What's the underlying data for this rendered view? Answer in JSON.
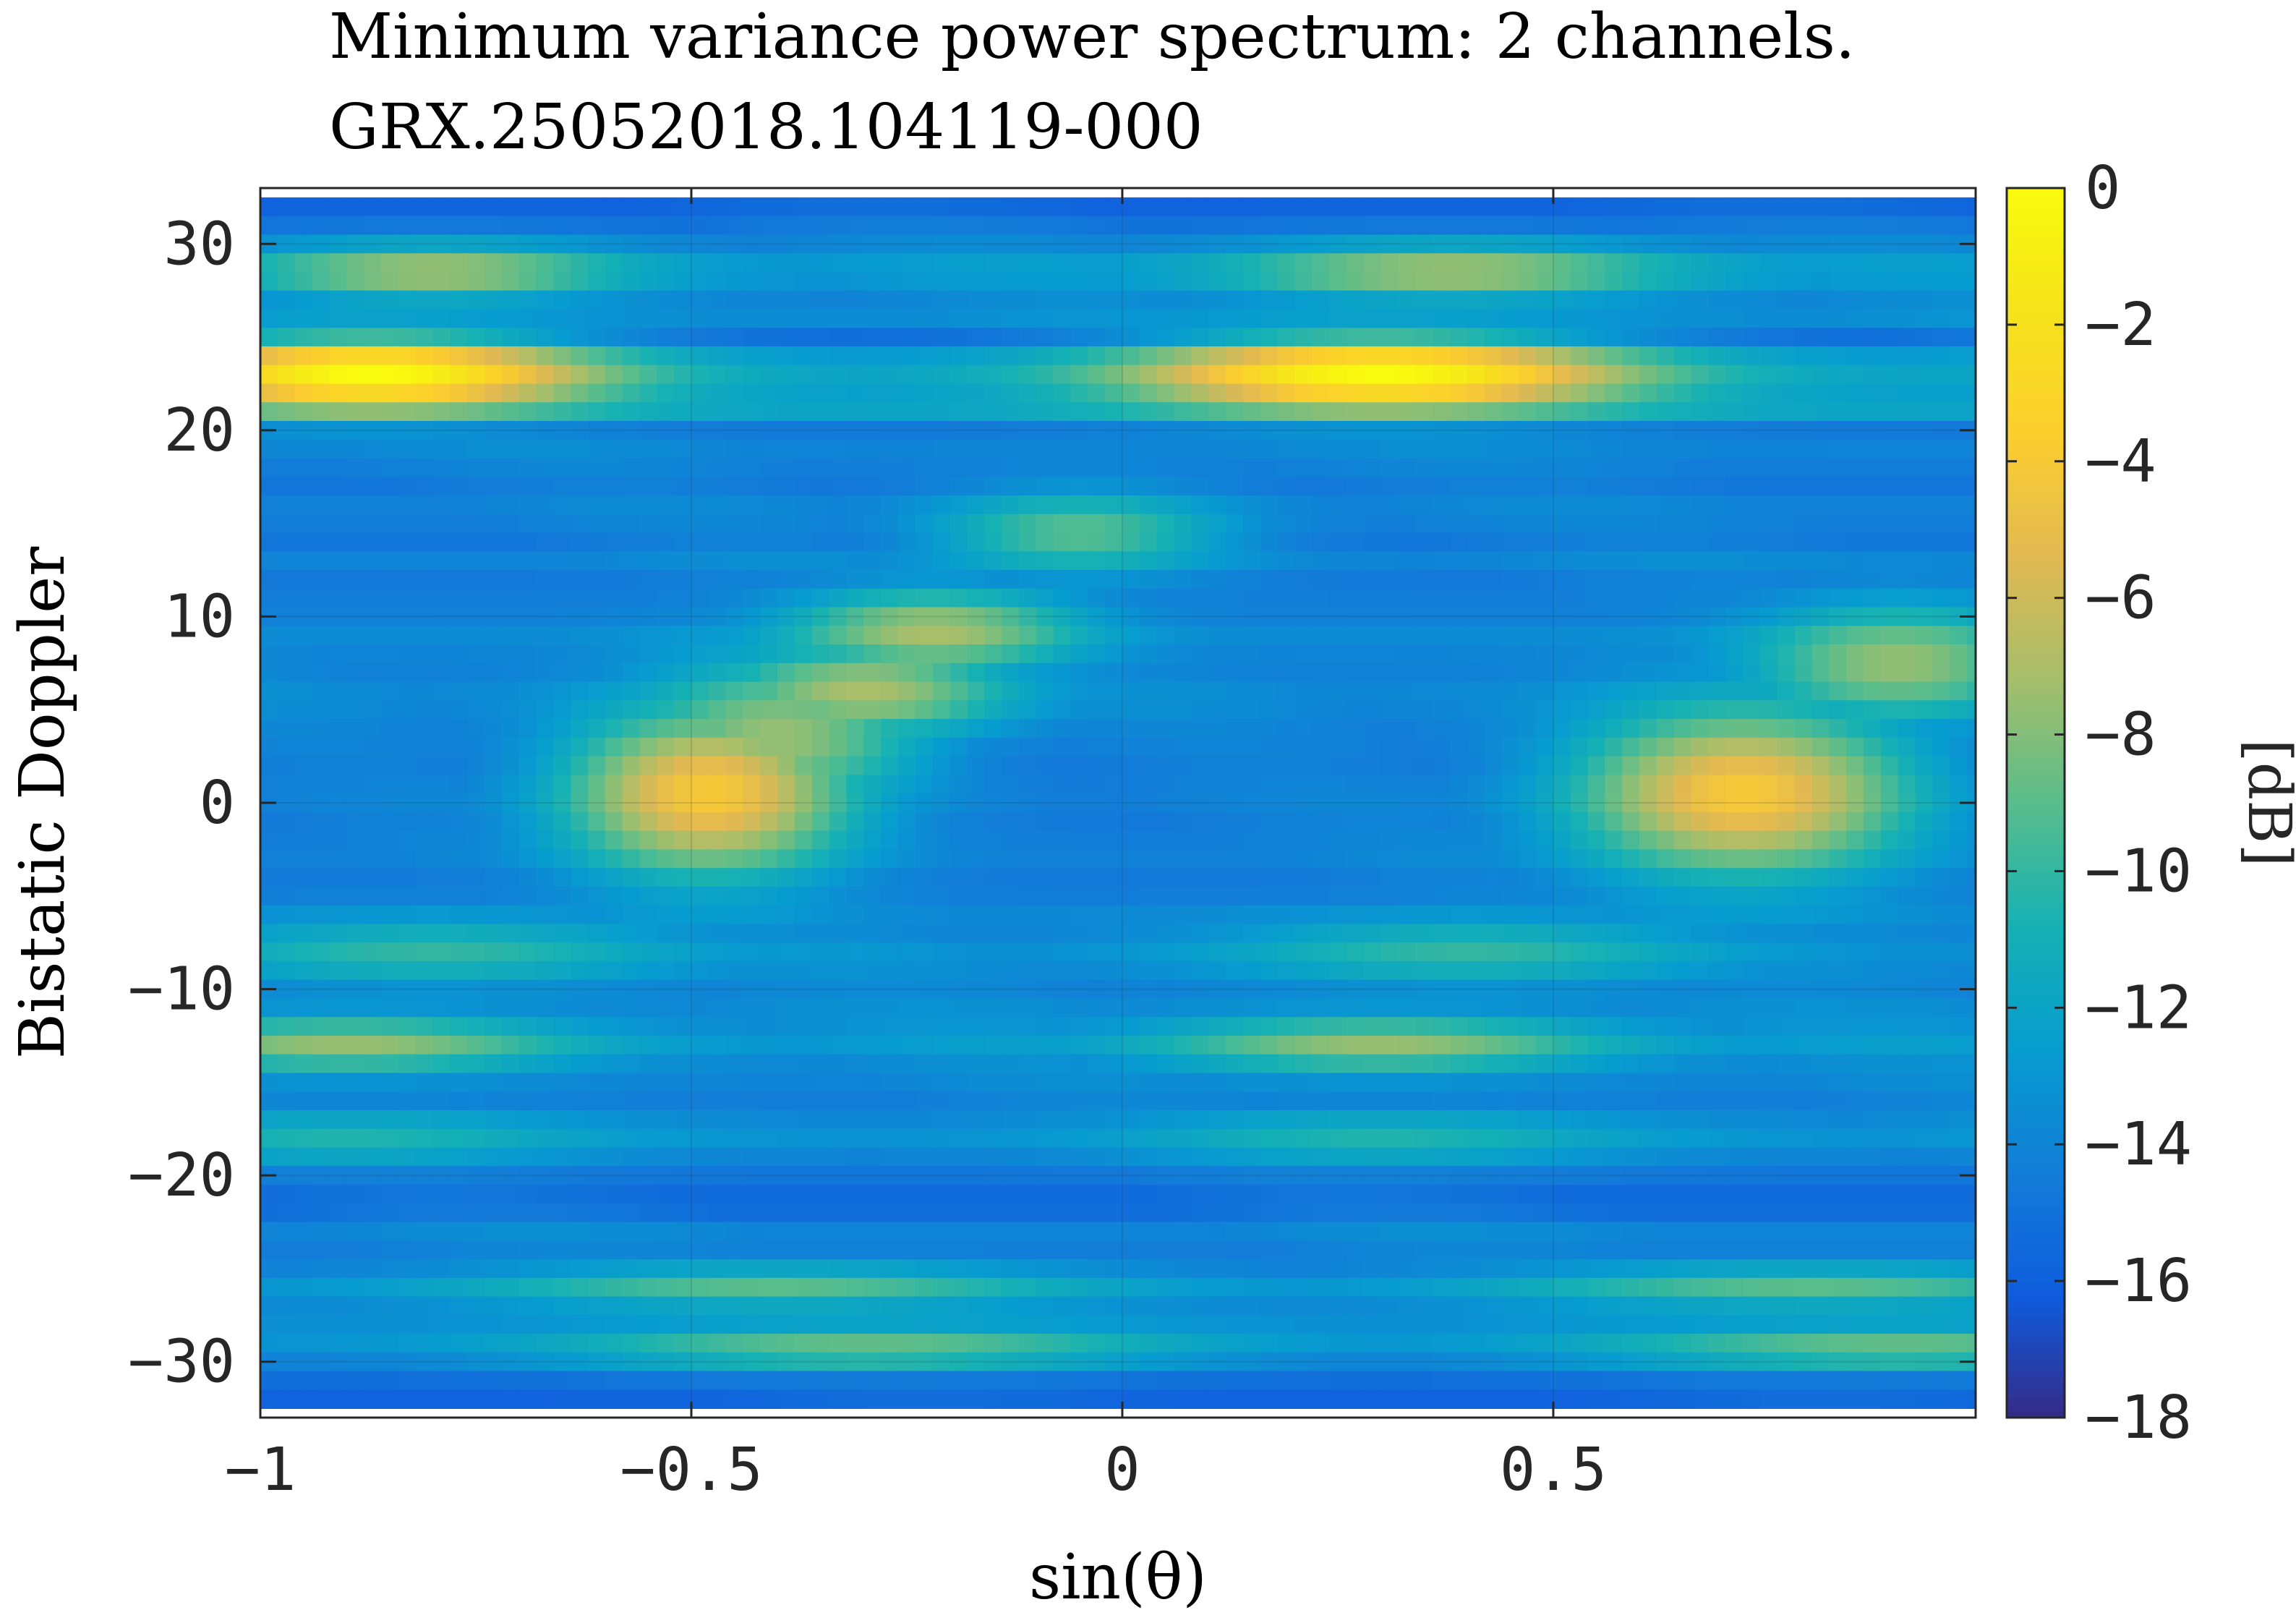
{
  "chart_data": {
    "type": "heatmap",
    "title": "Minimum variance power spectrum: 2 channels.",
    "subtitle": "GRX.25052018.104119-000",
    "xlabel": "sin(θ)",
    "ylabel": "Bistatic Doppler",
    "colorbar_label": "[dB]",
    "colormap": "parula",
    "xlim": [
      -1,
      0.99
    ],
    "ylim": [
      -33,
      33
    ],
    "clim": [
      -18,
      0
    ],
    "grid": true,
    "x_ticks": [
      -1,
      -0.5,
      0,
      0.5
    ],
    "x_tick_labels": [
      "−1",
      "−0.5",
      "0",
      "0.5"
    ],
    "y_ticks": [
      -30,
      -20,
      -10,
      0,
      10,
      20,
      30
    ],
    "y_tick_labels": [
      "−30",
      "−20",
      "−10",
      "0",
      "10",
      "20",
      "30"
    ],
    "colorbar_ticks": [
      0,
      -2,
      -4,
      -6,
      -8,
      -10,
      -12,
      -14,
      -16,
      -18
    ],
    "colorbar_tick_labels": [
      "0",
      "−2",
      "−4",
      "−6",
      "−8",
      "−10",
      "−12",
      "−14",
      "−16",
      "−18"
    ],
    "grid_x_resolution": 0.02,
    "doppler_rows": [
      {
        "y": 32,
        "base": -15.8
      },
      {
        "y": 31,
        "base": -15.0
      },
      {
        "y": 30,
        "base": -14.2
      },
      {
        "y": 29,
        "base": -13.0
      },
      {
        "y": 28,
        "base": -13.2
      },
      {
        "y": 27,
        "base": -14.0
      },
      {
        "y": 26,
        "base": -13.6
      },
      {
        "y": 25,
        "base": -15.2
      },
      {
        "y": 24,
        "base": -12.8
      },
      {
        "y": 23,
        "base": -12.0
      },
      {
        "y": 22,
        "base": -12.4
      },
      {
        "y": 21,
        "base": -12.0
      },
      {
        "y": 20,
        "base": -14.6
      },
      {
        "y": 19,
        "base": -14.0
      },
      {
        "y": 18,
        "base": -14.4
      },
      {
        "y": 17,
        "base": -14.8
      },
      {
        "y": 16,
        "base": -14.2
      },
      {
        "y": 15,
        "base": -14.4
      },
      {
        "y": 14,
        "base": -14.8
      },
      {
        "y": 13,
        "base": -14.0
      },
      {
        "y": 12,
        "base": -14.6
      },
      {
        "y": 11,
        "base": -14.4
      },
      {
        "y": 10,
        "base": -14.2
      },
      {
        "y": 9,
        "base": -13.6
      },
      {
        "y": 8,
        "base": -14.0
      },
      {
        "y": 7,
        "base": -14.2
      },
      {
        "y": 6,
        "base": -13.8
      },
      {
        "y": 5,
        "base": -14.0
      },
      {
        "y": 4,
        "base": -14.4
      },
      {
        "y": 3,
        "base": -14.6
      },
      {
        "y": 2,
        "base": -14.8
      },
      {
        "y": 1,
        "base": -14.6
      },
      {
        "y": 0,
        "base": -14.4
      },
      {
        "y": -1,
        "base": -14.6
      },
      {
        "y": -2,
        "base": -14.4
      },
      {
        "y": -3,
        "base": -14.2
      },
      {
        "y": -4,
        "base": -14.6
      },
      {
        "y": -5,
        "base": -14.4
      },
      {
        "y": -6,
        "base": -13.8
      },
      {
        "y": -7,
        "base": -14.0
      },
      {
        "y": -8,
        "base": -13.4
      },
      {
        "y": -9,
        "base": -13.8
      },
      {
        "y": -10,
        "base": -14.2
      },
      {
        "y": -11,
        "base": -13.8
      },
      {
        "y": -12,
        "base": -13.6
      },
      {
        "y": -13,
        "base": -13.0
      },
      {
        "y": -14,
        "base": -13.8
      },
      {
        "y": -15,
        "base": -14.0
      },
      {
        "y": -16,
        "base": -14.4
      },
      {
        "y": -17,
        "base": -13.8
      },
      {
        "y": -18,
        "base": -13.2
      },
      {
        "y": -19,
        "base": -14.0
      },
      {
        "y": -20,
        "base": -14.8
      },
      {
        "y": -21,
        "base": -15.4
      },
      {
        "y": -22,
        "base": -15.2
      },
      {
        "y": -23,
        "base": -14.0
      },
      {
        "y": -24,
        "base": -14.4
      },
      {
        "y": -25,
        "base": -14.2
      },
      {
        "y": -26,
        "base": -13.2
      },
      {
        "y": -27,
        "base": -13.8
      },
      {
        "y": -28,
        "base": -13.4
      },
      {
        "y": -29,
        "base": -13.2
      },
      {
        "y": -30,
        "base": -14.2
      },
      {
        "y": -31,
        "base": -15.2
      },
      {
        "y": -32,
        "base": -15.8
      }
    ],
    "peaks": [
      {
        "x": -0.87,
        "y": 23,
        "peak_db": 0,
        "x_spread": 0.18,
        "y_spread": 1.4
      },
      {
        "x": 0.3,
        "y": 23,
        "peak_db": 0,
        "x_spread": 0.2,
        "y_spread": 1.4
      },
      {
        "x": -0.8,
        "y": 28.5,
        "peak_db": -7,
        "x_spread": 0.15,
        "y_spread": 1.0
      },
      {
        "x": 0.38,
        "y": 28.5,
        "peak_db": -7,
        "x_spread": 0.18,
        "y_spread": 1.0
      },
      {
        "x": -0.48,
        "y": 0.5,
        "peak_db": -4,
        "x_spread": 0.12,
        "y_spread": 3.2
      },
      {
        "x": 0.72,
        "y": 0.5,
        "peak_db": -4,
        "x_spread": 0.14,
        "y_spread": 3.2
      },
      {
        "x": -0.4,
        "y": 3.5,
        "peak_db": -7.5,
        "x_spread": 0.12,
        "y_spread": 3.0
      },
      {
        "x": -0.3,
        "y": 6,
        "peak_db": -7,
        "x_spread": 0.12,
        "y_spread": 1.8
      },
      {
        "x": -0.22,
        "y": 9.2,
        "peak_db": -7,
        "x_spread": 0.12,
        "y_spread": 1.6
      },
      {
        "x": -0.05,
        "y": 14.5,
        "peak_db": -9,
        "x_spread": 0.12,
        "y_spread": 1.6
      },
      {
        "x": 0.9,
        "y": 7.5,
        "peak_db": -7.5,
        "x_spread": 0.12,
        "y_spread": 2.2
      },
      {
        "x": -0.9,
        "y": -13,
        "peak_db": -7.5,
        "x_spread": 0.18,
        "y_spread": 1.0
      },
      {
        "x": 0.3,
        "y": -13,
        "peak_db": -7.5,
        "x_spread": 0.18,
        "y_spread": 1.0
      },
      {
        "x": -0.8,
        "y": -8,
        "peak_db": -10,
        "x_spread": 0.2,
        "y_spread": 1.2
      },
      {
        "x": 0.4,
        "y": -8,
        "peak_db": -10,
        "x_spread": 0.2,
        "y_spread": 1.2
      },
      {
        "x": -0.4,
        "y": -26,
        "peak_db": -9,
        "x_spread": 0.25,
        "y_spread": 0.8
      },
      {
        "x": 0.8,
        "y": -26,
        "peak_db": -9,
        "x_spread": 0.25,
        "y_spread": 0.8
      },
      {
        "x": -0.3,
        "y": -29.3,
        "peak_db": -8.5,
        "x_spread": 0.25,
        "y_spread": 0.8
      },
      {
        "x": 0.9,
        "y": -29.3,
        "peak_db": -8.5,
        "x_spread": 0.25,
        "y_spread": 0.8
      },
      {
        "x": -0.9,
        "y": -18,
        "peak_db": -10.5,
        "x_spread": 0.2,
        "y_spread": 1.0
      },
      {
        "x": 0.3,
        "y": -18,
        "peak_db": -10.5,
        "x_spread": 0.2,
        "y_spread": 1.0
      }
    ]
  }
}
